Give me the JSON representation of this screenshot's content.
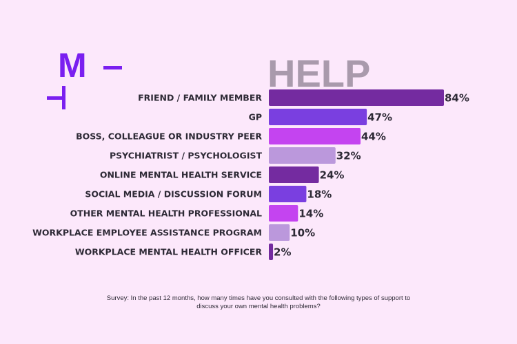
{
  "logo": {
    "letter": "M"
  },
  "chart_data": {
    "type": "bar",
    "orientation": "horizontal",
    "title": "HELP",
    "categories": [
      "FRIEND / FAMILY MEMBER",
      "GP",
      "BOSS, COLLEAGUE OR INDUSTRY PEER",
      "PSYCHIATRIST / PSYCHOLOGIST",
      "ONLINE MENTAL HEALTH SERVICE",
      "SOCIAL MEDIA / DISCUSSION FORUM",
      "OTHER MENTAL HEALTH PROFESSIONAL",
      "WORKPLACE EMPLOYEE ASSISTANCE PROGRAM",
      "WORKPLACE MENTAL HEALTH OFFICER"
    ],
    "values": [
      84,
      47,
      44,
      32,
      24,
      18,
      14,
      10,
      2
    ],
    "value_labels": [
      "84%",
      "47%",
      "44%",
      "32%",
      "24%",
      "18%",
      "14%",
      "10%",
      "2%"
    ],
    "bar_colors": [
      "#742ba0",
      "#7a3fe0",
      "#c444f0",
      "#bb98dc",
      "#742ba0",
      "#7a3fe0",
      "#c444f0",
      "#bb98dc",
      "#742ba0"
    ],
    "unit": "%",
    "xlim": [
      0,
      84
    ],
    "grid": false
  },
  "footnote": {
    "line1": "Survey: In the past 12 months, how many times have you consulted with the following types of support to",
    "line2": "discuss your own mental health problems?"
  },
  "colors": {
    "background": "#fce8fb",
    "logo": "#7a1ff0",
    "text": "#2e2a36",
    "title": "#a99aac"
  }
}
